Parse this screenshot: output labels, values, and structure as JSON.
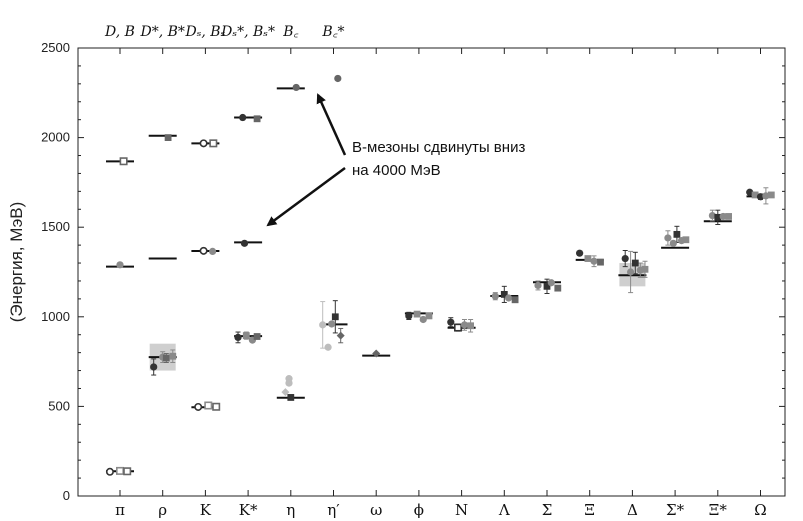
{
  "chart_data": {
    "type": "scatter",
    "ylabel": "(Энергия, МэВ)",
    "xlabel": "",
    "ylim": [
      0,
      2500
    ],
    "yticks": [
      0,
      500,
      1000,
      1500,
      2000,
      2500
    ],
    "categories": [
      "π",
      "ρ",
      "K",
      "K*",
      "η",
      "η′",
      "ω",
      "ϕ",
      "N",
      "Λ",
      "Σ",
      "Ξ",
      "Δ",
      "Σ*",
      "Ξ*",
      "Ω"
    ],
    "top_labels": [
      "D, B",
      "D*, B*",
      "Dₛ, Bₛ",
      "Dₛ*, Bₛ*",
      "B꜀",
      "B꜀*"
    ],
    "annotation": [
      "B-мезоны сдвинуты вниз",
      "на 4000 МэВ"
    ],
    "colors": {
      "experiment": "#111111",
      "dark": "#333333",
      "mid": "#666666",
      "light": "#8a8a8a",
      "pale": "#bdbdbd",
      "band": "#cfcfcf"
    },
    "experiment_lines": [
      {
        "category": "π",
        "y": 138
      },
      {
        "category": "ρ",
        "y": 775
      },
      {
        "category": "K",
        "y": 495
      },
      {
        "category": "K*",
        "y": 892
      },
      {
        "category": "η",
        "y": 548
      },
      {
        "category": "η′",
        "y": 958
      },
      {
        "category": "ω",
        "y": 783
      },
      {
        "category": "ϕ",
        "y": 1019
      },
      {
        "category": "N",
        "y": 939
      },
      {
        "category": "Λ",
        "y": 1116
      },
      {
        "category": "Σ",
        "y": 1193
      },
      {
        "category": "Ξ",
        "y": 1318
      },
      {
        "category": "Δ",
        "y": 1232
      },
      {
        "category": "Σ*",
        "y": 1385
      },
      {
        "category": "Ξ*",
        "y": 1533
      },
      {
        "category": "Ω",
        "y": 1672
      },
      {
        "category": "π",
        "y": 1867
      },
      {
        "category": "π",
        "y": 1280
      },
      {
        "category": "ρ",
        "y": 2010
      },
      {
        "category": "ρ",
        "y": 1325
      },
      {
        "category": "K",
        "y": 1968
      },
      {
        "category": "K",
        "y": 1367
      },
      {
        "category": "K*",
        "y": 2112
      },
      {
        "category": "K*",
        "y": 1415
      },
      {
        "category": "η",
        "y": 2275
      }
    ],
    "bands": [
      {
        "category": "ρ",
        "low": 700,
        "high": 850
      },
      {
        "category": "Δ",
        "low": 1170,
        "high": 1300
      }
    ],
    "points": [
      {
        "category": "π",
        "offset": -0.28,
        "y": 135,
        "shape": "circle-open",
        "shade": "dark"
      },
      {
        "category": "π",
        "offset": 0.0,
        "y": 140,
        "shape": "square-open",
        "shade": "light"
      },
      {
        "category": "π",
        "offset": 0.2,
        "y": 138,
        "shape": "square-open",
        "shade": "mid"
      },
      {
        "category": "π",
        "offset": 0.1,
        "y": 1868,
        "shape": "square-open",
        "shade": "mid"
      },
      {
        "category": "π",
        "offset": 0.0,
        "y": 1290,
        "shape": "circle",
        "shade": "light"
      },
      {
        "category": "ρ",
        "offset": -0.25,
        "y": 720,
        "shape": "circle",
        "shade": "dark",
        "err": 45
      },
      {
        "category": "ρ",
        "offset": 0.0,
        "y": 775,
        "shape": "circle",
        "shade": "light",
        "err": 30
      },
      {
        "category": "ρ",
        "offset": 0.1,
        "y": 770,
        "shape": "square",
        "shade": "mid",
        "err": 25
      },
      {
        "category": "ρ",
        "offset": 0.28,
        "y": 780,
        "shape": "square",
        "shade": "light",
        "err": 35
      },
      {
        "category": "ρ",
        "offset": 0.15,
        "y": 2000,
        "shape": "square",
        "shade": "mid"
      },
      {
        "category": "K",
        "offset": -0.2,
        "y": 497,
        "shape": "circle-open",
        "shade": "dark"
      },
      {
        "category": "K",
        "offset": 0.08,
        "y": 505,
        "shape": "square-open",
        "shade": "light"
      },
      {
        "category": "K",
        "offset": 0.3,
        "y": 498,
        "shape": "square-open",
        "shade": "mid"
      },
      {
        "category": "K",
        "offset": -0.05,
        "y": 1968,
        "shape": "circle-open",
        "shade": "dark"
      },
      {
        "category": "K",
        "offset": 0.22,
        "y": 1968,
        "shape": "square-open",
        "shade": "mid"
      },
      {
        "category": "K",
        "offset": -0.05,
        "y": 1368,
        "shape": "circle-open",
        "shade": "dark"
      },
      {
        "category": "K",
        "offset": 0.2,
        "y": 1365,
        "shape": "circle",
        "shade": "light"
      },
      {
        "category": "K*",
        "offset": -0.28,
        "y": 885,
        "shape": "circle",
        "shade": "dark",
        "err": 30
      },
      {
        "category": "K*",
        "offset": -0.05,
        "y": 895,
        "shape": "square",
        "shade": "light",
        "err": 20
      },
      {
        "category": "K*",
        "offset": 0.12,
        "y": 870,
        "shape": "circle",
        "shade": "light"
      },
      {
        "category": "K*",
        "offset": 0.25,
        "y": 890,
        "shape": "square",
        "shade": "mid"
      },
      {
        "category": "K*",
        "offset": -0.15,
        "y": 2112,
        "shape": "circle",
        "shade": "dark"
      },
      {
        "category": "K*",
        "offset": 0.25,
        "y": 2105,
        "shape": "square",
        "shade": "mid"
      },
      {
        "category": "K*",
        "offset": -0.1,
        "y": 1410,
        "shape": "circle",
        "shade": "dark"
      },
      {
        "category": "η",
        "offset": -0.15,
        "y": 580,
        "shape": "diamond",
        "shade": "pale"
      },
      {
        "category": "η",
        "offset": -0.05,
        "y": 655,
        "shape": "circle",
        "shade": "pale"
      },
      {
        "category": "η",
        "offset": -0.05,
        "y": 630,
        "shape": "circle",
        "shade": "pale"
      },
      {
        "category": "η",
        "offset": 0.0,
        "y": 550,
        "shape": "square",
        "shade": "dark"
      },
      {
        "category": "η",
        "offset": 0.15,
        "y": 2280,
        "shape": "circle",
        "shade": "mid"
      },
      {
        "category": "η′",
        "offset": -0.3,
        "y": 955,
        "shape": "circle",
        "shade": "pale",
        "err": 130
      },
      {
        "category": "η′",
        "offset": -0.15,
        "y": 830,
        "shape": "circle",
        "shade": "pale"
      },
      {
        "category": "η′",
        "offset": -0.05,
        "y": 960,
        "shape": "circle",
        "shade": "light"
      },
      {
        "category": "η′",
        "offset": 0.05,
        "y": 1000,
        "shape": "square",
        "shade": "dark",
        "err": 90
      },
      {
        "category": "η′",
        "offset": 0.2,
        "y": 895,
        "shape": "diamond",
        "shade": "mid",
        "err": 40
      },
      {
        "category": "η′",
        "offset": 0.12,
        "y": 2330,
        "shape": "circle",
        "shade": "mid"
      },
      {
        "category": "ω",
        "offset": 0.0,
        "y": 795,
        "shape": "diamond",
        "shade": "mid"
      },
      {
        "category": "ϕ",
        "offset": -0.28,
        "y": 1005,
        "shape": "circle",
        "shade": "dark",
        "err": 20
      },
      {
        "category": "ϕ",
        "offset": -0.05,
        "y": 1015,
        "shape": "square",
        "shade": "light"
      },
      {
        "category": "ϕ",
        "offset": 0.12,
        "y": 985,
        "shape": "circle",
        "shade": "light"
      },
      {
        "category": "ϕ",
        "offset": 0.28,
        "y": 1005,
        "shape": "square",
        "shade": "light"
      },
      {
        "category": "N",
        "offset": -0.3,
        "y": 970,
        "shape": "circle",
        "shade": "dark",
        "err": 25
      },
      {
        "category": "N",
        "offset": -0.1,
        "y": 940,
        "shape": "square-open",
        "shade": "dark",
        "err": 20
      },
      {
        "category": "N",
        "offset": 0.08,
        "y": 955,
        "shape": "circle",
        "shade": "light",
        "err": 30
      },
      {
        "category": "N",
        "offset": 0.25,
        "y": 950,
        "shape": "square",
        "shade": "light",
        "err": 35
      },
      {
        "category": "Λ",
        "offset": -0.25,
        "y": 1115,
        "shape": "circle",
        "shade": "light",
        "err": 20
      },
      {
        "category": "Λ",
        "offset": 0.0,
        "y": 1125,
        "shape": "square",
        "shade": "dark",
        "err": 45
      },
      {
        "category": "Λ",
        "offset": 0.12,
        "y": 1105,
        "shape": "circle",
        "shade": "light"
      },
      {
        "category": "Λ",
        "offset": 0.3,
        "y": 1095,
        "shape": "square",
        "shade": "mid"
      },
      {
        "category": "Σ",
        "offset": -0.25,
        "y": 1175,
        "shape": "circle",
        "shade": "light",
        "err": 25
      },
      {
        "category": "Σ",
        "offset": 0.0,
        "y": 1170,
        "shape": "square",
        "shade": "dark",
        "err": 40
      },
      {
        "category": "Σ",
        "offset": 0.12,
        "y": 1190,
        "shape": "circle",
        "shade": "light"
      },
      {
        "category": "Σ",
        "offset": 0.3,
        "y": 1160,
        "shape": "square",
        "shade": "mid"
      },
      {
        "category": "Ξ",
        "offset": -0.28,
        "y": 1355,
        "shape": "circle",
        "shade": "dark"
      },
      {
        "category": "Ξ",
        "offset": -0.05,
        "y": 1325,
        "shape": "square",
        "shade": "light"
      },
      {
        "category": "Ξ",
        "offset": 0.12,
        "y": 1310,
        "shape": "circle",
        "shade": "light",
        "err": 30
      },
      {
        "category": "Ξ",
        "offset": 0.3,
        "y": 1305,
        "shape": "square",
        "shade": "mid"
      },
      {
        "category": "Δ",
        "offset": -0.2,
        "y": 1325,
        "shape": "circle",
        "shade": "dark",
        "err": 45
      },
      {
        "category": "Δ",
        "offset": -0.05,
        "y": 1250,
        "shape": "circle",
        "shade": "light",
        "err": 115
      },
      {
        "category": "Δ",
        "offset": 0.08,
        "y": 1300,
        "shape": "square",
        "shade": "dark",
        "err": 60
      },
      {
        "category": "Δ",
        "offset": 0.22,
        "y": 1260,
        "shape": "circle",
        "shade": "light",
        "err": 40
      },
      {
        "category": "Δ",
        "offset": 0.35,
        "y": 1265,
        "shape": "square",
        "shade": "light",
        "err": 45
      },
      {
        "category": "Σ*",
        "offset": -0.2,
        "y": 1440,
        "shape": "circle",
        "shade": "light",
        "err": 40
      },
      {
        "category": "Σ*",
        "offset": -0.05,
        "y": 1410,
        "shape": "circle",
        "shade": "light"
      },
      {
        "category": "Σ*",
        "offset": 0.05,
        "y": 1460,
        "shape": "square",
        "shade": "dark",
        "err": 45
      },
      {
        "category": "Σ*",
        "offset": 0.18,
        "y": 1425,
        "shape": "circle",
        "shade": "light"
      },
      {
        "category": "Σ*",
        "offset": 0.3,
        "y": 1430,
        "shape": "square",
        "shade": "light"
      },
      {
        "category": "Ξ*",
        "offset": -0.15,
        "y": 1565,
        "shape": "circle",
        "shade": "light",
        "err": 30
      },
      {
        "category": "Ξ*",
        "offset": 0.0,
        "y": 1555,
        "shape": "square",
        "shade": "dark",
        "err": 40
      },
      {
        "category": "Ξ*",
        "offset": 0.15,
        "y": 1560,
        "shape": "circle",
        "shade": "light"
      },
      {
        "category": "Ξ*",
        "offset": 0.3,
        "y": 1560,
        "shape": "square",
        "shade": "light"
      },
      {
        "category": "Ω",
        "offset": -0.3,
        "y": 1695,
        "shape": "circle",
        "shade": "dark"
      },
      {
        "category": "Ω",
        "offset": -0.15,
        "y": 1680,
        "shape": "square",
        "shade": "light"
      },
      {
        "category": "Ω",
        "offset": 0.0,
        "y": 1670,
        "shape": "circle",
        "shade": "dark",
        "err": 15
      },
      {
        "category": "Ω",
        "offset": 0.15,
        "y": 1675,
        "shape": "circle",
        "shade": "light",
        "err": 45
      },
      {
        "category": "Ω",
        "offset": 0.3,
        "y": 1680,
        "shape": "square",
        "shade": "light"
      }
    ]
  }
}
